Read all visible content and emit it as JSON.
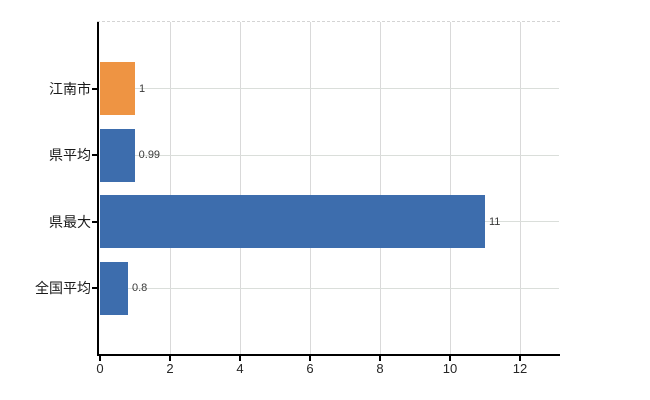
{
  "chart_data": {
    "type": "bar",
    "orientation": "horizontal",
    "title": "",
    "xlabel": "",
    "ylabel": "",
    "categories": [
      "江南市",
      "県平均",
      "県最大",
      "全国平均"
    ],
    "values": [
      1,
      0.99,
      11,
      0.8
    ],
    "value_labels": [
      "1",
      "0.99",
      "11",
      "0.8"
    ],
    "bar_colors": [
      "#ee9443",
      "#3d6dad",
      "#3d6dad",
      "#3d6dad"
    ],
    "x_tick_labels": [
      "0",
      "2",
      "4",
      "6",
      "8",
      "10",
      "12"
    ],
    "x_tick_values": [
      0,
      2,
      4,
      6,
      8,
      10,
      12
    ],
    "xlim": [
      0,
      13.2
    ],
    "grid": true,
    "legend_position": "none",
    "colors": {
      "highlight_bar": "#ee9443",
      "default_bar": "#3d6dad",
      "vertical_gridline": "#d9d9d9",
      "horizontal_gridline": "#dadeda",
      "axis_line": "#000000",
      "category_label_text": "#1a1a1a",
      "value_label_text": "#3a3a3a",
      "tick_label_text": "#262626",
      "background": "#ffffff"
    }
  }
}
